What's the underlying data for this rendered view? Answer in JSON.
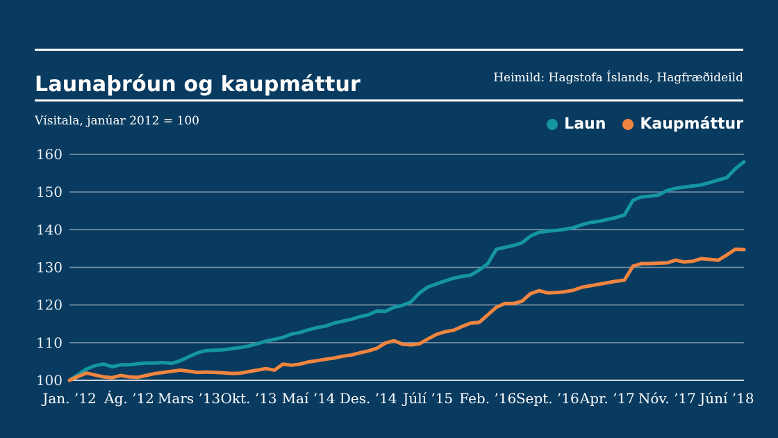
{
  "header": {
    "title": "Launaþróun og kaupmáttur",
    "source": "Heimild: Hagstofa Íslands, Hagfræðideild"
  },
  "subtitle": "Vísitala, janúar 2012 = 100",
  "colors": {
    "background": "#093a5f",
    "laun_line": "#1596a1",
    "kaupmattur_line": "#f08540",
    "gridline": "#9fb0bf",
    "baseline": "#cdd7de",
    "text": "#ffffff",
    "y_tick_text": "#eaf0f4"
  },
  "chart_data": {
    "type": "line",
    "title": "Launaþróun og kaupmáttur",
    "subtitle": "Vísitala, janúar 2012 = 100",
    "source": "Heimild: Hagstofa Íslands, Hagfræðideild",
    "x_unit": "month",
    "n_points": 80,
    "grid": "horizontal",
    "legend_position": "top-right",
    "ylim": [
      100,
      160
    ],
    "y_ticks": [
      100,
      110,
      120,
      130,
      140,
      150,
      160
    ],
    "x_ticks": [
      {
        "month_index": 0,
        "label": "Jan. ’12"
      },
      {
        "month_index": 7,
        "label": "Ág. ’12"
      },
      {
        "month_index": 14,
        "label": "Mars ’13"
      },
      {
        "month_index": 21,
        "label": "Okt. ’13"
      },
      {
        "month_index": 28,
        "label": "Maí ’14"
      },
      {
        "month_index": 35,
        "label": "Des. ’14"
      },
      {
        "month_index": 42,
        "label": "Júlí ’15"
      },
      {
        "month_index": 49,
        "label": "Feb. ’16"
      },
      {
        "month_index": 56,
        "label": "Sept. ’16"
      },
      {
        "month_index": 63,
        "label": "Apr. ’17"
      },
      {
        "month_index": 70,
        "label": "Nóv. ’17"
      },
      {
        "month_index": 77,
        "label": "Júní ’18"
      }
    ],
    "series": [
      {
        "name": "Laun",
        "color": "#1596a1",
        "values": [
          100,
          101.5,
          103.0,
          103.9,
          104.3,
          103.6,
          104.1,
          104.1,
          104.4,
          104.6,
          104.6,
          104.7,
          104.5,
          105.2,
          106.3,
          107.3,
          107.9,
          108.0,
          108.1,
          108.4,
          108.7,
          109.1,
          109.7,
          110.4,
          110.9,
          111.4,
          112.3,
          112.7,
          113.4,
          114.0,
          114.4,
          115.2,
          115.7,
          116.2,
          116.9,
          117.4,
          118.4,
          118.3,
          119.4,
          119.9,
          120.8,
          123.2,
          124.8,
          125.6,
          126.4,
          127.1,
          127.6,
          127.9,
          129.3,
          131.0,
          134.8,
          135.3,
          135.8,
          136.5,
          138.3,
          139.3,
          139.6,
          139.8,
          140.1,
          140.5,
          141.3,
          141.9,
          142.2,
          142.7,
          143.2,
          143.9,
          147.8,
          148.7,
          148.9,
          149.2,
          150.4,
          151.0,
          151.3,
          151.6,
          151.9,
          152.5,
          153.2,
          153.8,
          156.2,
          158.0
        ]
      },
      {
        "name": "Kaupmáttur",
        "color": "#f08540",
        "values": [
          100,
          101.0,
          101.9,
          101.4,
          100.9,
          100.7,
          101.3,
          100.9,
          100.8,
          101.3,
          101.8,
          102.1,
          102.4,
          102.7,
          102.4,
          102.1,
          102.2,
          102.1,
          102.0,
          101.8,
          101.9,
          102.3,
          102.7,
          103.1,
          102.7,
          104.3,
          104.0,
          104.3,
          104.9,
          105.2,
          105.6,
          105.9,
          106.4,
          106.7,
          107.3,
          107.8,
          108.5,
          109.9,
          110.5,
          109.6,
          109.4,
          109.7,
          111.0,
          112.2,
          112.9,
          113.3,
          114.3,
          115.2,
          115.4,
          117.4,
          119.4,
          120.4,
          120.4,
          121.0,
          123.0,
          123.8,
          123.2,
          123.3,
          123.5,
          123.9,
          124.7,
          125.1,
          125.5,
          125.9,
          126.3,
          126.6,
          130.3,
          131.0,
          131.0,
          131.1,
          131.2,
          131.9,
          131.4,
          131.6,
          132.3,
          132.1,
          131.9,
          133.3,
          134.8,
          134.7
        ]
      }
    ]
  }
}
